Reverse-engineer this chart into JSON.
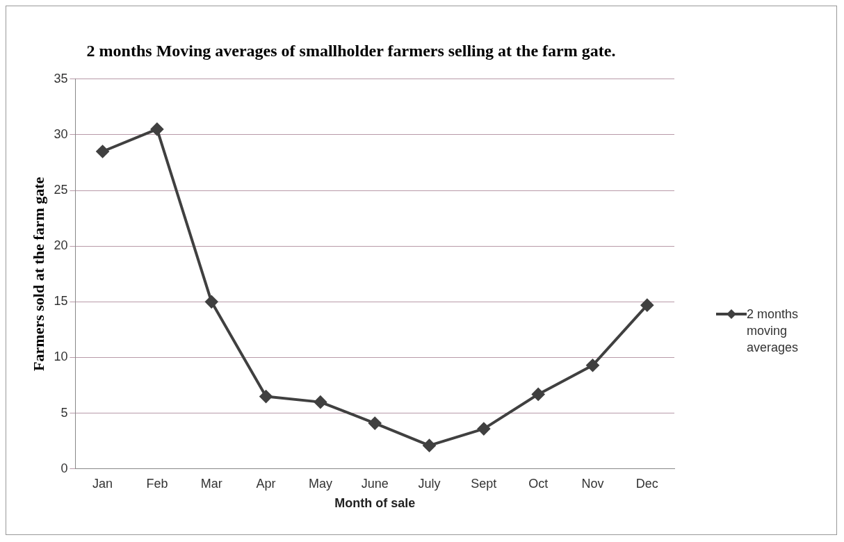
{
  "chart_data": {
    "type": "line",
    "title": "2 months Moving averages of smallholder farmers selling at the farm gate.",
    "xlabel": "Month of sale",
    "ylabel": "Farmers sold at the farm gate",
    "categories": [
      "Jan",
      "Feb",
      "Mar",
      "Apr",
      "May",
      "June",
      "July",
      "Sept",
      "Oct",
      "Nov",
      "Dec"
    ],
    "series": [
      {
        "name": "2 months moving averages",
        "color": "#404040",
        "values": [
          28.5,
          30.5,
          15,
          6.5,
          6,
          4.1,
          2.1,
          3.6,
          6.7,
          9.3,
          14.7
        ]
      }
    ],
    "ylim": [
      0,
      35
    ],
    "yticks": [
      0,
      5,
      10,
      15,
      20,
      25,
      30,
      35
    ],
    "grid": "y",
    "legend": "right",
    "marker": "diamond",
    "line_style": "solid"
  }
}
